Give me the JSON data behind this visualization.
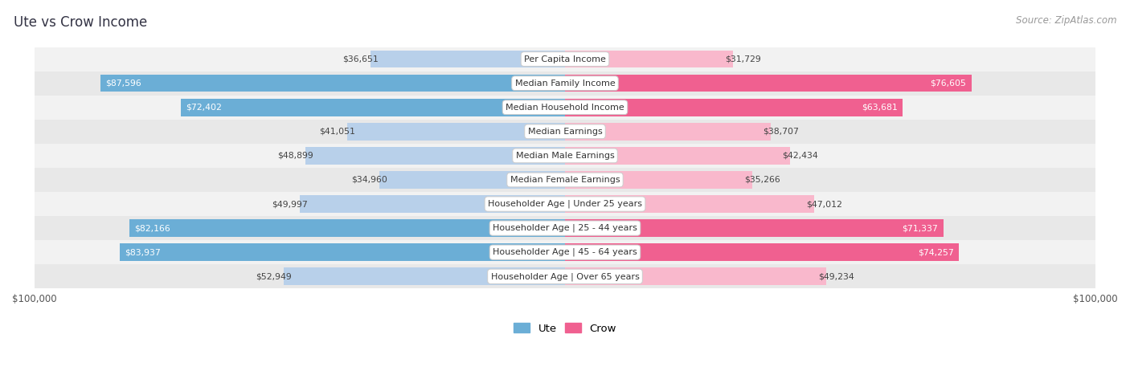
{
  "title": "Ute vs Crow Income",
  "source": "Source: ZipAtlas.com",
  "categories": [
    "Per Capita Income",
    "Median Family Income",
    "Median Household Income",
    "Median Earnings",
    "Median Male Earnings",
    "Median Female Earnings",
    "Householder Age | Under 25 years",
    "Householder Age | 25 - 44 years",
    "Householder Age | 45 - 64 years",
    "Householder Age | Over 65 years"
  ],
  "ute_values": [
    36651,
    87596,
    72402,
    41051,
    48899,
    34960,
    49997,
    82166,
    83937,
    52949
  ],
  "crow_values": [
    31729,
    76605,
    63681,
    38707,
    42434,
    35266,
    47012,
    71337,
    74257,
    49234
  ],
  "ute_labels": [
    "$36,651",
    "$87,596",
    "$72,402",
    "$41,051",
    "$48,899",
    "$34,960",
    "$49,997",
    "$82,166",
    "$83,937",
    "$52,949"
  ],
  "crow_labels": [
    "$31,729",
    "$76,605",
    "$63,681",
    "$38,707",
    "$42,434",
    "$35,266",
    "$47,012",
    "$71,337",
    "$74,257",
    "$49,234"
  ],
  "ute_color_light": "#b8d0ea",
  "ute_color_dark": "#6baed6",
  "crow_color_light": "#f9b8cc",
  "crow_color_dark": "#f06090",
  "max_val": 100000,
  "bg_color": "#ffffff",
  "row_bg_even": "#f2f2f2",
  "row_bg_odd": "#e8e8e8",
  "title_color": "#333344",
  "source_color": "#999999",
  "dark_threshold": 55000
}
